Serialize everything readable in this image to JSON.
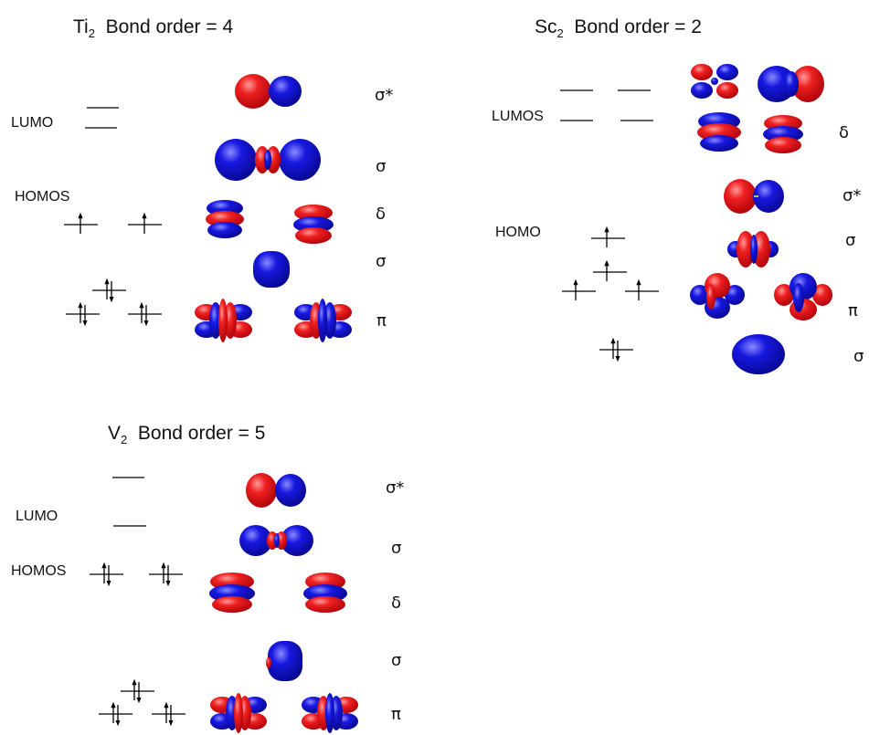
{
  "colors": {
    "positive_lobe": "#e8101a",
    "negative_lobe": "#1010d8",
    "line": "#000000"
  },
  "panels": {
    "ti2": {
      "title_prefix": "Ti",
      "title_subscript": "2",
      "title_suffix": "Bond order = 4",
      "lumo_label": "LUMO",
      "homo_label": "HOMOS",
      "symbols": [
        "σ*",
        "σ",
        "δ",
        "σ",
        "π"
      ]
    },
    "sc2": {
      "title_prefix": "Sc",
      "title_subscript": "2",
      "title_suffix": "Bond order = 2",
      "lumo_label": "LUMOS",
      "homo_label": "HOMO",
      "symbols": [
        "δ",
        "σ*",
        "σ",
        "π",
        "σ"
      ]
    },
    "v2": {
      "title_prefix": "V",
      "title_subscript": "2",
      "title_suffix": "Bond order = 5",
      "lumo_label": "LUMO",
      "homo_label": "HOMOS",
      "symbols": [
        "σ*",
        "σ",
        "δ",
        "σ",
        "π"
      ]
    }
  }
}
